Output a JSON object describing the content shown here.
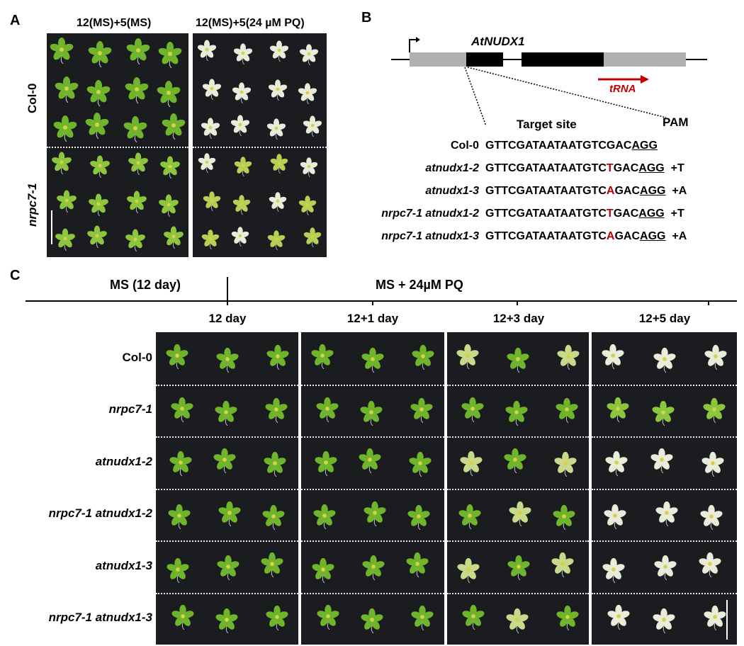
{
  "panel_a": {
    "letter": "A",
    "col_headers": [
      "12(MS)+5(MS)",
      "12(MS)+5(24 µM PQ)"
    ],
    "row_labels": [
      "Col-0",
      "nrpc7-1"
    ]
  },
  "panel_b": {
    "letter": "B",
    "gene_name": "AtNUDX1",
    "trna_label": "tRNA",
    "target_site_label": "Target site",
    "pam_label": "PAM",
    "sequences": [
      {
        "label": "Col-0",
        "italic": false,
        "prefix": "GTTCGATAATAATGTCGAC",
        "insert": "",
        "pam": "AGG",
        "suffix": ""
      },
      {
        "label": "atnudx1-2",
        "italic": true,
        "prefix": "GTTCGATAATAATGTC",
        "insert": "T",
        "rest": "GAC",
        "pam": "AGG",
        "suffix": "+T"
      },
      {
        "label": "atnudx1-3",
        "italic": true,
        "prefix": "GTTCGATAATAATGTC",
        "insert": "A",
        "rest": "GAC",
        "pam": "AGG",
        "suffix": "+A"
      },
      {
        "label": "nrpc7-1 atnudx1-2",
        "italic": true,
        "prefix": "GTTCGATAATAATGTC",
        "insert": "T",
        "rest": "GAC",
        "pam": "AGG",
        "suffix": "+T"
      },
      {
        "label": "nrpc7-1 atnudx1-3",
        "italic": true,
        "prefix": "GTTCGATAATAATGTC",
        "insert": "A",
        "rest": "GAC",
        "pam": "AGG",
        "suffix": "+A"
      }
    ]
  },
  "panel_c": {
    "letter": "C",
    "timeline_left": "MS (12 day)",
    "timeline_right": "MS + 24µM PQ",
    "day_labels": [
      "12 day",
      "12+1 day",
      "12+3 day",
      "12+5 day"
    ],
    "genotypes": [
      "Col-0",
      "nrpc7-1",
      "atnudx1-2",
      "nrpc7-1 atnudx1-2",
      "atnudx1-3",
      "nrpc7-1 atnudx1-3"
    ]
  },
  "colors": {
    "background_photo": "#1b1c1f",
    "leaf_green": "#6fb52c",
    "bleached": "#e9ecd9",
    "exon": "#000000",
    "utr": "#b0b0b0",
    "mutation_red": "#c00000"
  }
}
